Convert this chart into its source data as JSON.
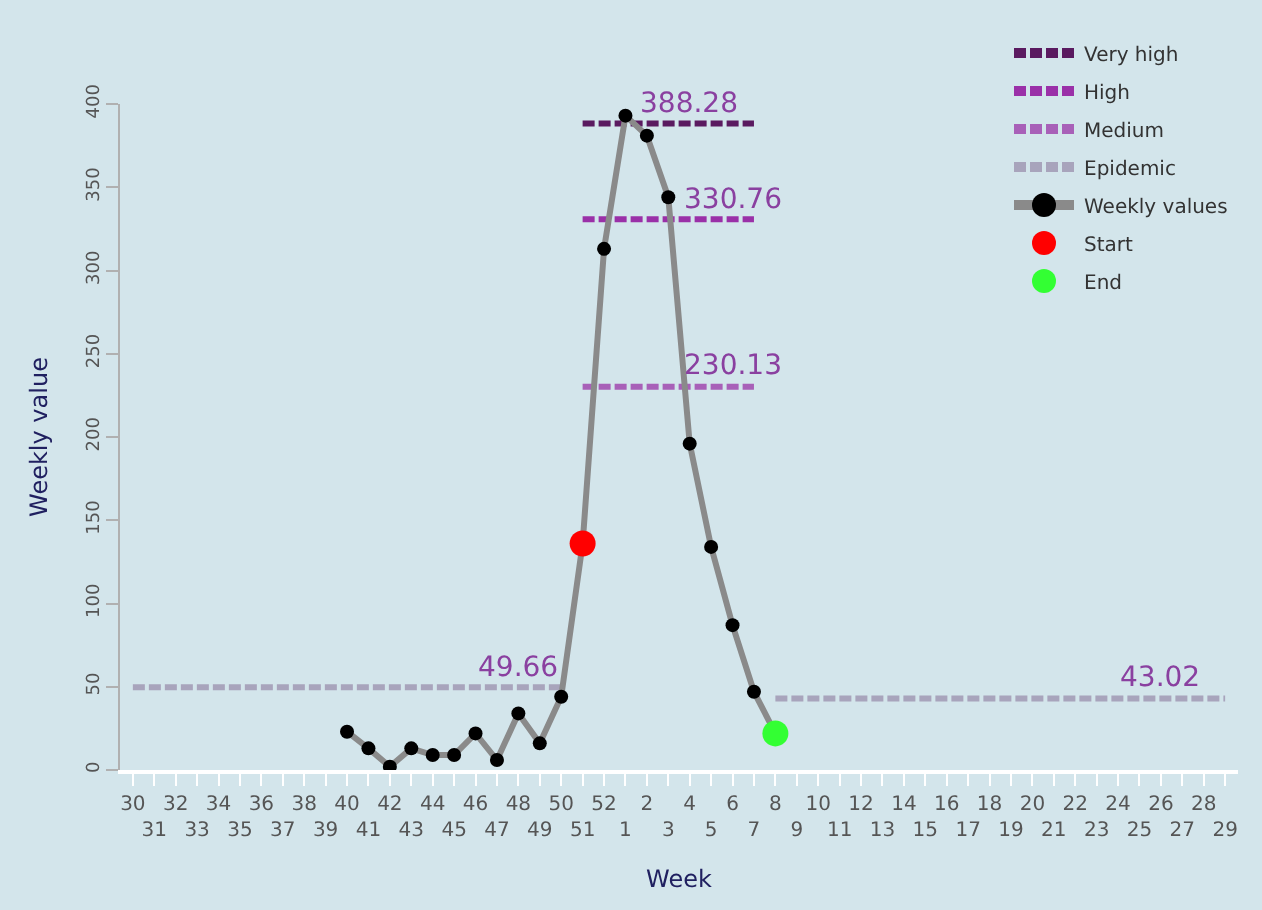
{
  "chart_data": {
    "type": "line",
    "xlabel": "Week",
    "ylabel": "Weekly value",
    "categories": [
      "30",
      "31",
      "32",
      "33",
      "34",
      "35",
      "36",
      "37",
      "38",
      "39",
      "40",
      "41",
      "42",
      "43",
      "44",
      "45",
      "46",
      "47",
      "48",
      "49",
      "50",
      "51",
      "52",
      "1",
      "2",
      "3",
      "4",
      "5",
      "6",
      "7",
      "8",
      "9",
      "10",
      "11",
      "12",
      "13",
      "14",
      "15",
      "16",
      "17",
      "18",
      "19",
      "20",
      "21",
      "22",
      "23",
      "24",
      "25",
      "26",
      "27",
      "28",
      "29"
    ],
    "series": [
      {
        "name": "Very high",
        "line_style": "dashed",
        "color": "#5a1a60",
        "values": [
          null,
          null,
          null,
          null,
          null,
          null,
          null,
          null,
          null,
          null,
          null,
          null,
          null,
          null,
          null,
          null,
          null,
          null,
          null,
          null,
          null,
          388.28,
          388.28,
          388.28,
          388.28,
          388.28,
          388.28,
          388.28,
          388.28,
          388.28,
          null,
          null,
          null,
          null,
          null,
          null,
          null,
          null,
          null,
          null,
          null,
          null,
          null,
          null,
          null,
          null,
          null,
          null,
          null,
          null,
          null,
          null
        ]
      },
      {
        "name": "High",
        "line_style": "dashed",
        "color": "#9a30a8",
        "values": [
          null,
          null,
          null,
          null,
          null,
          null,
          null,
          null,
          null,
          null,
          null,
          null,
          null,
          null,
          null,
          null,
          null,
          null,
          null,
          null,
          null,
          330.76,
          330.76,
          330.76,
          330.76,
          330.76,
          330.76,
          330.76,
          330.76,
          330.76,
          null,
          null,
          null,
          null,
          null,
          null,
          null,
          null,
          null,
          null,
          null,
          null,
          null,
          null,
          null,
          null,
          null,
          null,
          null,
          null,
          null,
          null
        ]
      },
      {
        "name": "Medium",
        "line_style": "dashed",
        "color": "#a860b8",
        "values": [
          null,
          null,
          null,
          null,
          null,
          null,
          null,
          null,
          null,
          null,
          null,
          null,
          null,
          null,
          null,
          null,
          null,
          null,
          null,
          null,
          null,
          230.13,
          230.13,
          230.13,
          230.13,
          230.13,
          230.13,
          230.13,
          230.13,
          230.13,
          null,
          null,
          null,
          null,
          null,
          null,
          null,
          null,
          null,
          null,
          null,
          null,
          null,
          null,
          null,
          null,
          null,
          null,
          null,
          null,
          null,
          null
        ]
      },
      {
        "name": "Epidemic",
        "line_style": "dashed",
        "color": "#a8a4bc",
        "values": [
          49.66,
          49.66,
          49.66,
          49.66,
          49.66,
          49.66,
          49.66,
          49.66,
          49.66,
          49.66,
          49.66,
          49.66,
          49.66,
          49.66,
          49.66,
          49.66,
          49.66,
          49.66,
          49.66,
          49.66,
          49.66,
          null,
          null,
          null,
          null,
          null,
          null,
          null,
          null,
          null,
          43.02,
          43.02,
          43.02,
          43.02,
          43.02,
          43.02,
          43.02,
          43.02,
          43.02,
          43.02,
          43.02,
          43.02,
          43.02,
          43.02,
          43.02,
          43.02,
          43.02,
          43.02,
          43.02,
          43.02,
          43.02,
          43.02
        ]
      },
      {
        "name": "Weekly values",
        "line_style": "solid",
        "marker": "circle",
        "color": "#8a8a8a",
        "colors": [
          "#000000",
          "#000000",
          "#000000",
          "#000000",
          "#000000",
          "#000000",
          "#000000",
          "#000000",
          "#000000",
          "#000000",
          "#000000",
          "#000000",
          "#000000",
          "#000000",
          "#000000",
          "#000000",
          "#000000",
          "#000000",
          "#000000",
          "#000000",
          "#000000",
          "#000000",
          "#000000",
          "#000000",
          "#000000",
          "#000000",
          "#000000",
          "#000000",
          "#000000",
          "#000000",
          "#000000",
          "#000000",
          "#000000",
          "#000000",
          "#000000",
          "#000000",
          "#000000",
          "#000000",
          "#000000",
          "#000000",
          "#000000",
          "#000000",
          "#000000",
          "#000000",
          "#000000",
          "#000000",
          "#000000",
          "#000000",
          "#000000",
          "#000000",
          "#000000",
          "#000000"
        ],
        "values": [
          null,
          null,
          null,
          null,
          null,
          null,
          null,
          null,
          null,
          null,
          23,
          13,
          2,
          13,
          9,
          9,
          22,
          6,
          34,
          16,
          44,
          136,
          313,
          393,
          381,
          344,
          196,
          134,
          87,
          47,
          22,
          null,
          null,
          null,
          null,
          null,
          null,
          null,
          null,
          null,
          null,
          null,
          null,
          null,
          null,
          null,
          null,
          null,
          null,
          null,
          null,
          null
        ]
      },
      {
        "name": "Start",
        "type": "scatter",
        "marker": "circle",
        "color": "#ff0000",
        "values": [
          null,
          null,
          null,
          null,
          null,
          null,
          null,
          null,
          null,
          null,
          null,
          null,
          null,
          null,
          null,
          null,
          null,
          null,
          null,
          null,
          null,
          136,
          null,
          null,
          null,
          null,
          null,
          null,
          null,
          null,
          null,
          null,
          null,
          null,
          null,
          null,
          null,
          null,
          null,
          null,
          null,
          null,
          null,
          null,
          null,
          null,
          null,
          null,
          null,
          null,
          null,
          null
        ]
      },
      {
        "name": "End",
        "type": "scatter",
        "marker": "circle",
        "color": "#33ff33",
        "values": [
          null,
          null,
          null,
          null,
          null,
          null,
          null,
          null,
          null,
          null,
          null,
          null,
          null,
          null,
          null,
          null,
          null,
          null,
          null,
          null,
          null,
          null,
          null,
          null,
          null,
          null,
          null,
          null,
          null,
          null,
          22,
          null,
          null,
          null,
          null,
          null,
          null,
          null,
          null,
          null,
          null,
          null,
          null,
          null,
          null,
          null,
          null,
          null,
          null,
          null,
          null,
          null
        ]
      }
    ],
    "annotations": [
      {
        "text": "388.28",
        "x": "4",
        "y": 388.28
      },
      {
        "text": "330.76",
        "x": "6",
        "y": 330.76
      },
      {
        "text": "230.13",
        "x": "6",
        "y": 230.13
      },
      {
        "text": "49.66",
        "x": "48",
        "y": 49.66
      },
      {
        "text": "43.02",
        "x": "26",
        "y": 43.02
      }
    ],
    "ylim": [
      0,
      400
    ],
    "yticks": [
      0,
      50,
      100,
      150,
      200,
      250,
      300,
      350,
      400
    ],
    "grid": false,
    "legend": "top right"
  }
}
